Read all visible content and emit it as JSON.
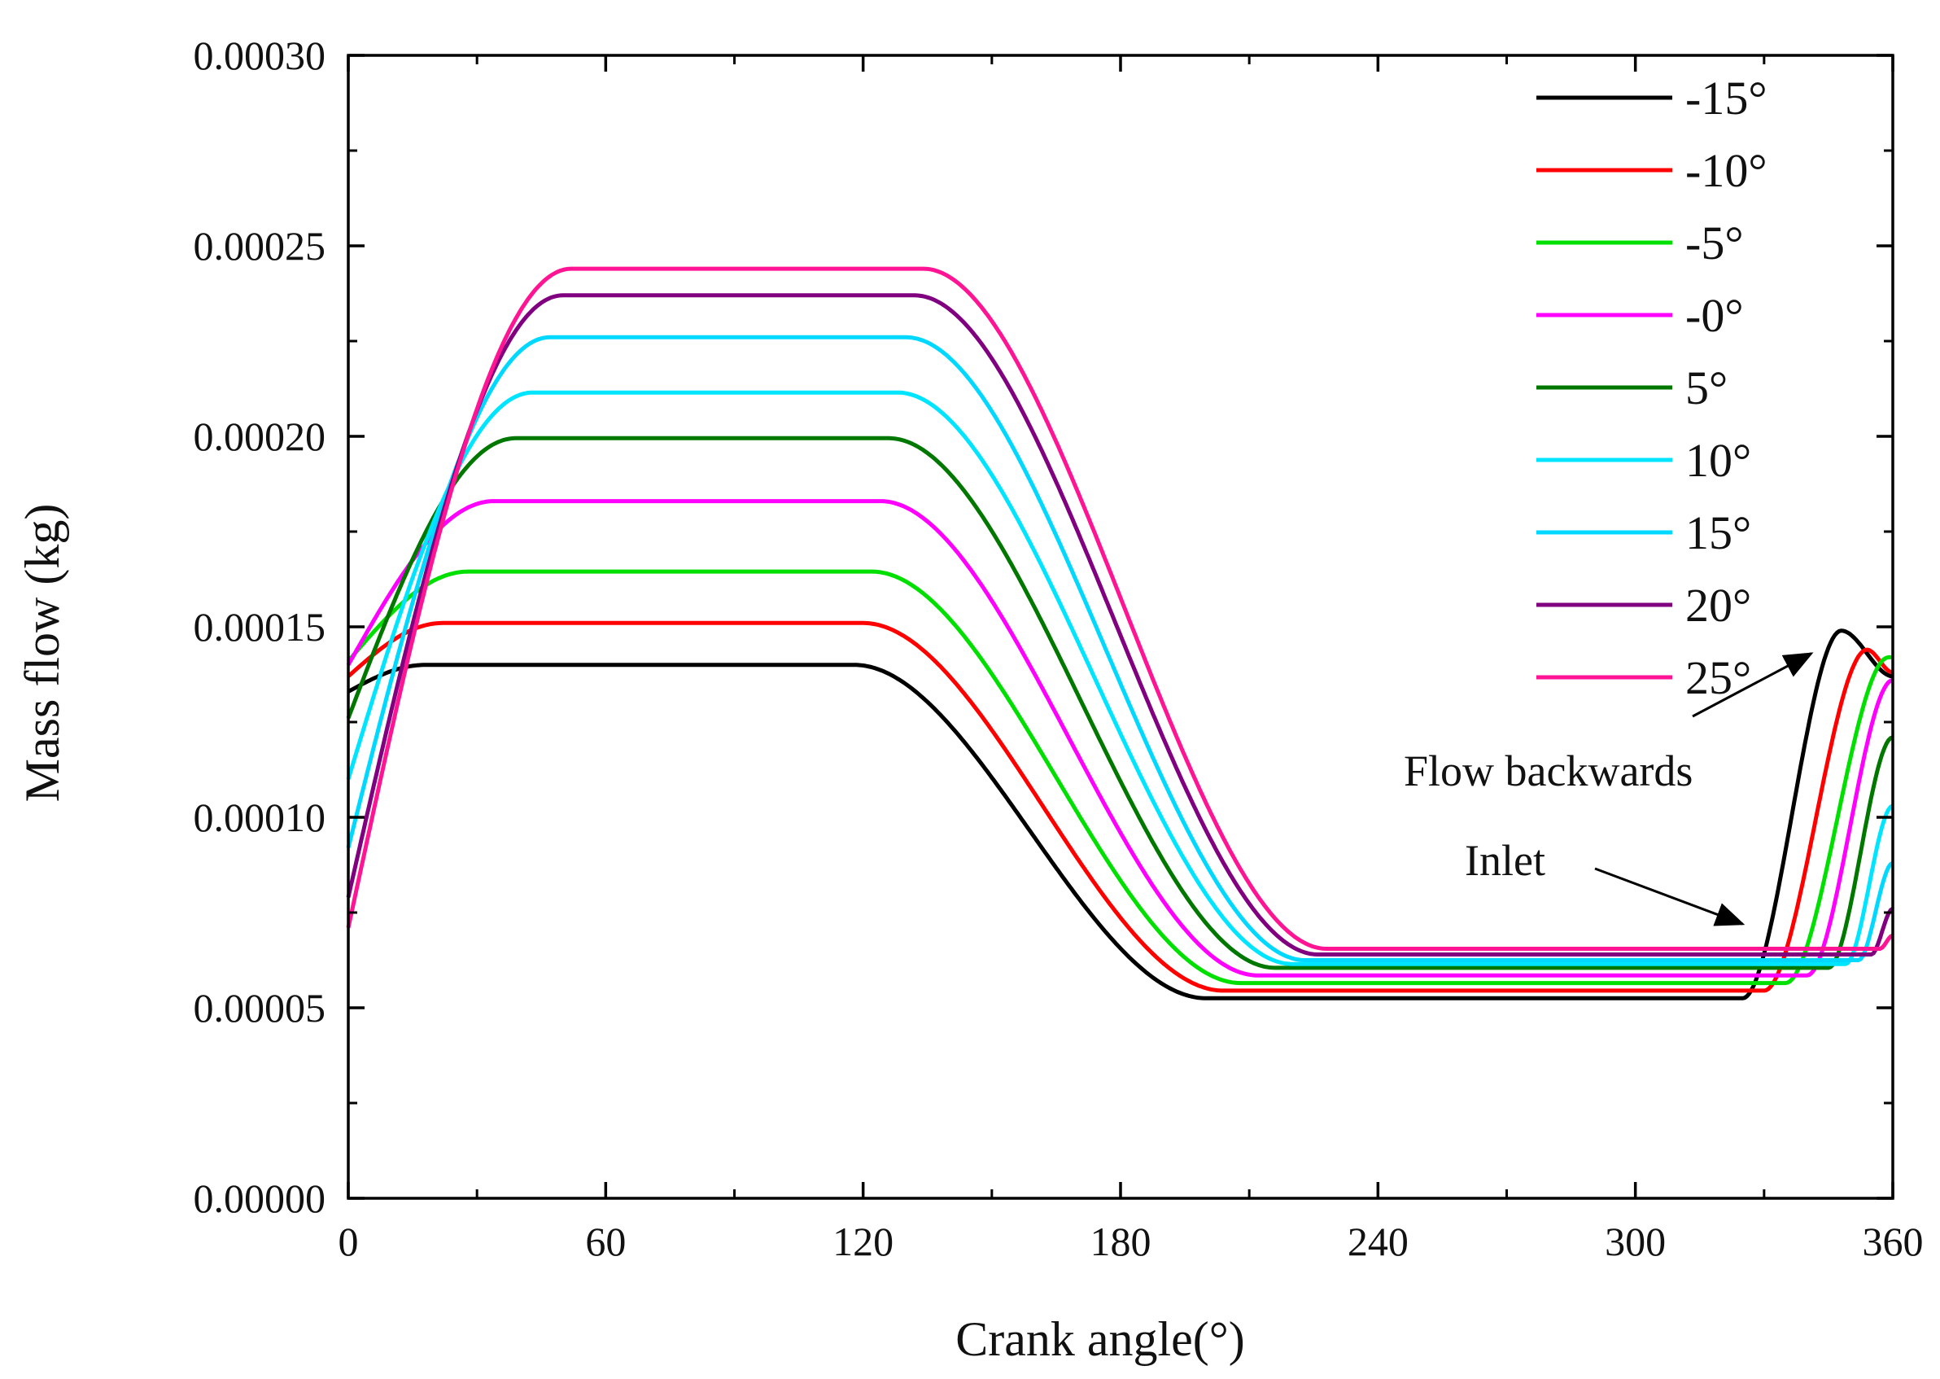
{
  "chart_data": {
    "type": "line",
    "title": "",
    "xlabel": "Crank angle(°)",
    "ylabel": "Mass flow (kg)",
    "xlim": [
      0,
      360
    ],
    "ylim": [
      0,
      0.0003
    ],
    "xticks": [
      0,
      60,
      120,
      180,
      240,
      300,
      360
    ],
    "yticks": [
      0.0,
      5e-05,
      0.0001,
      0.00015,
      0.0002,
      0.00025,
      0.0003
    ],
    "xtick_labels": [
      "0",
      "60",
      "120",
      "180",
      "240",
      "300",
      "360"
    ],
    "ytick_labels": [
      "0.00000",
      "0.00005",
      "0.00010",
      "0.00015",
      "0.00020",
      "0.00025",
      "0.00030"
    ],
    "grid": false,
    "legend_position": "top-right",
    "series": [
      {
        "name": "-15°",
        "color": "#000000",
        "start": 0.000133,
        "rise_end": 18,
        "plateau": 0.00014,
        "fall_start": 118,
        "fall_end": 200,
        "low": 5.25e-05,
        "low_reach": 245,
        "back_start": 325,
        "back_peak_x": 348,
        "back_peak": 0.000149,
        "end": 0.000137
      },
      {
        "name": "-10°",
        "color": "#ff0000",
        "start": 0.000137,
        "rise_end": 22,
        "plateau": 0.000151,
        "fall_start": 120,
        "fall_end": 204,
        "low": 5.45e-05,
        "low_reach": 246,
        "back_start": 330,
        "back_peak_x": 354,
        "back_peak": 0.000144,
        "end": 0.000138
      },
      {
        "name": "-5°",
        "color": "#00e000",
        "start": 0.000141,
        "rise_end": 28,
        "plateau": 0.0001645,
        "fall_start": 122,
        "fall_end": 208,
        "low": 5.65e-05,
        "low_reach": 247,
        "back_start": 335,
        "back_peak_x": 359,
        "back_peak": 0.000142,
        "end": 0.000142
      },
      {
        "name": "-0°",
        "color": "#ff00ff",
        "start": 0.00014,
        "rise_end": 34,
        "plateau": 0.000183,
        "fall_start": 124,
        "fall_end": 212,
        "low": 5.85e-05,
        "low_reach": 248,
        "back_start": 340,
        "back_peak_x": 360,
        "back_peak": 0.000136,
        "end": 0.000136
      },
      {
        "name": "5°",
        "color": "#007800",
        "start": 0.000126,
        "rise_end": 39,
        "plateau": 0.0001995,
        "fall_start": 126,
        "fall_end": 216,
        "low": 6.05e-05,
        "low_reach": 249,
        "back_start": 345,
        "back_peak_x": 360,
        "back_peak": 0.000121,
        "end": 0.000121
      },
      {
        "name": "10°",
        "color": "#00e5ff",
        "start": 0.00011,
        "rise_end": 43,
        "plateau": 0.0002115,
        "fall_start": 128,
        "fall_end": 220,
        "low": 6.15e-05,
        "low_reach": 250,
        "back_start": 349,
        "back_peak_x": 360,
        "back_peak": 0.000103,
        "end": 0.000103
      },
      {
        "name": "15°",
        "color": "#00d8ff",
        "start": 9.2e-05,
        "rise_end": 47,
        "plateau": 0.000226,
        "fall_start": 130,
        "fall_end": 223,
        "low": 6.25e-05,
        "low_reach": 251,
        "back_start": 352,
        "back_peak_x": 360,
        "back_peak": 8.8e-05,
        "end": 8.8e-05
      },
      {
        "name": "20°",
        "color": "#800080",
        "start": 7.9e-05,
        "rise_end": 50,
        "plateau": 0.000237,
        "fall_start": 132,
        "fall_end": 226,
        "low": 6.4e-05,
        "low_reach": 252,
        "back_start": 355,
        "back_peak_x": 360,
        "back_peak": 7.6e-05,
        "end": 7.6e-05
      },
      {
        "name": "25°",
        "color": "#ff1493",
        "start": 7.1e-05,
        "rise_end": 52,
        "plateau": 0.000244,
        "fall_start": 134,
        "fall_end": 228,
        "low": 6.55e-05,
        "low_reach": 253,
        "back_start": 357,
        "back_peak_x": 360,
        "back_peak": 6.9e-05,
        "end": 6.9e-05
      }
    ],
    "annotations": [
      {
        "text": "Flow backwards",
        "point_x": 341,
        "point_y": 0.000143
      },
      {
        "text": "Inlet",
        "point_x": 325,
        "point_y": 7.2e-05
      }
    ]
  }
}
